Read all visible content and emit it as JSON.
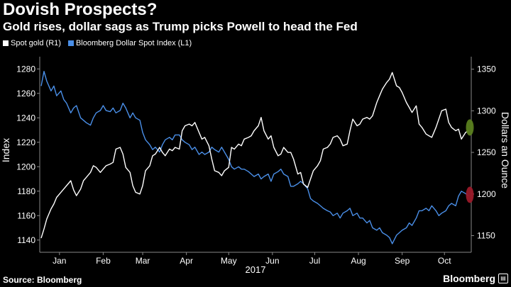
{
  "title": "Dovish Prospects?",
  "subtitle": "Gold rises, dollar sags as Trump picks Powell to head the Fed",
  "legend": [
    {
      "label": "Spot gold (R1)",
      "color": "#ffffff"
    },
    {
      "label": "Bloomberg Dollar Spot Index (L1)",
      "color": "#4a8fe8"
    }
  ],
  "footer": {
    "source": "Source: Bloomberg",
    "brand": "Bloomberg",
    "brand_icon": "bloomberg-logo-icon"
  },
  "chart_data": {
    "type": "line",
    "xlabel": "2017",
    "ylabel_left": "Index",
    "ylabel_right": "Dollars an Ounce",
    "x_tick_labels": [
      "Jan",
      "Feb",
      "Mar",
      "Apr",
      "May",
      "Jun",
      "Jul",
      "Aug",
      "Sep",
      "Oct"
    ],
    "x_tick_dates": [
      "2017-01-15",
      "2017-02-15",
      "2017-03-15",
      "2017-04-15",
      "2017-05-15",
      "2017-06-15",
      "2017-07-15",
      "2017-08-15",
      "2017-09-15",
      "2017-10-15"
    ],
    "xlim": [
      "2017-01-01",
      "2017-11-03"
    ],
    "ylim_left": [
      1130,
      1290
    ],
    "yticks_left": [
      1140,
      1160,
      1180,
      1200,
      1220,
      1240,
      1260,
      1280
    ],
    "ylim_right": [
      1130,
      1365
    ],
    "yticks_right": [
      1150,
      1200,
      1250,
      1300,
      1350
    ],
    "grid": false,
    "legend_position": "top-left",
    "series": [
      {
        "name": "Bloomberg Dollar Spot Index (L1)",
        "axis": "left",
        "color": "#4a8fe8",
        "points": [
          [
            "2017-01-02",
            1266
          ],
          [
            "2017-01-04",
            1278
          ],
          [
            "2017-01-06",
            1270
          ],
          [
            "2017-01-09",
            1262
          ],
          [
            "2017-01-11",
            1266
          ],
          [
            "2017-01-13",
            1258
          ],
          [
            "2017-01-16",
            1262
          ],
          [
            "2017-01-18",
            1255
          ],
          [
            "2017-01-20",
            1252
          ],
          [
            "2017-01-23",
            1244
          ],
          [
            "2017-01-25",
            1248
          ],
          [
            "2017-01-27",
            1250
          ],
          [
            "2017-01-30",
            1240
          ],
          [
            "2017-02-01",
            1238
          ],
          [
            "2017-02-03",
            1236
          ],
          [
            "2017-02-06",
            1234
          ],
          [
            "2017-02-08",
            1240
          ],
          [
            "2017-02-10",
            1244
          ],
          [
            "2017-02-13",
            1246
          ],
          [
            "2017-02-15",
            1250
          ],
          [
            "2017-02-17",
            1246
          ],
          [
            "2017-02-20",
            1245
          ],
          [
            "2017-02-22",
            1248
          ],
          [
            "2017-02-24",
            1244
          ],
          [
            "2017-02-27",
            1246
          ],
          [
            "2017-03-01",
            1252
          ],
          [
            "2017-03-03",
            1248
          ],
          [
            "2017-03-06",
            1240
          ],
          [
            "2017-03-08",
            1244
          ],
          [
            "2017-03-10",
            1240
          ],
          [
            "2017-03-13",
            1238
          ],
          [
            "2017-03-15",
            1228
          ],
          [
            "2017-03-17",
            1222
          ],
          [
            "2017-03-20",
            1218
          ],
          [
            "2017-03-22",
            1214
          ],
          [
            "2017-03-24",
            1216
          ],
          [
            "2017-03-27",
            1212
          ],
          [
            "2017-03-29",
            1218
          ],
          [
            "2017-03-31",
            1222
          ],
          [
            "2017-04-03",
            1224
          ],
          [
            "2017-04-05",
            1222
          ],
          [
            "2017-04-07",
            1226
          ],
          [
            "2017-04-10",
            1226
          ],
          [
            "2017-04-12",
            1222
          ],
          [
            "2017-04-14",
            1220
          ],
          [
            "2017-04-17",
            1218
          ],
          [
            "2017-04-19",
            1214
          ],
          [
            "2017-04-21",
            1216
          ],
          [
            "2017-04-24",
            1210
          ],
          [
            "2017-04-26",
            1212
          ],
          [
            "2017-04-28",
            1210
          ],
          [
            "2017-05-01",
            1212
          ],
          [
            "2017-05-03",
            1216
          ],
          [
            "2017-05-05",
            1214
          ],
          [
            "2017-05-08",
            1212
          ],
          [
            "2017-05-10",
            1216
          ],
          [
            "2017-05-12",
            1212
          ],
          [
            "2017-05-15",
            1206
          ],
          [
            "2017-05-17",
            1200
          ],
          [
            "2017-05-19",
            1198
          ],
          [
            "2017-05-22",
            1200
          ],
          [
            "2017-05-24",
            1198
          ],
          [
            "2017-05-26",
            1198
          ],
          [
            "2017-05-29",
            1196
          ],
          [
            "2017-05-31",
            1194
          ],
          [
            "2017-06-02",
            1192
          ],
          [
            "2017-06-05",
            1194
          ],
          [
            "2017-06-07",
            1190
          ],
          [
            "2017-06-09",
            1192
          ],
          [
            "2017-06-12",
            1194
          ],
          [
            "2017-06-14",
            1188
          ],
          [
            "2017-06-16",
            1194
          ],
          [
            "2017-06-19",
            1196
          ],
          [
            "2017-06-21",
            1198
          ],
          [
            "2017-06-23",
            1194
          ],
          [
            "2017-06-26",
            1192
          ],
          [
            "2017-06-28",
            1184
          ],
          [
            "2017-06-30",
            1184
          ],
          [
            "2017-07-03",
            1186
          ],
          [
            "2017-07-05",
            1188
          ],
          [
            "2017-07-07",
            1186
          ],
          [
            "2017-07-10",
            1182
          ],
          [
            "2017-07-12",
            1174
          ],
          [
            "2017-07-14",
            1172
          ],
          [
            "2017-07-17",
            1170
          ],
          [
            "2017-07-19",
            1168
          ],
          [
            "2017-07-21",
            1166
          ],
          [
            "2017-07-24",
            1164
          ],
          [
            "2017-07-26",
            1163
          ],
          [
            "2017-07-28",
            1160
          ],
          [
            "2017-07-31",
            1162
          ],
          [
            "2017-08-02",
            1158
          ],
          [
            "2017-08-04",
            1162
          ],
          [
            "2017-08-07",
            1164
          ],
          [
            "2017-08-09",
            1166
          ],
          [
            "2017-08-11",
            1160
          ],
          [
            "2017-08-14",
            1162
          ],
          [
            "2017-08-16",
            1158
          ],
          [
            "2017-08-18",
            1158
          ],
          [
            "2017-08-21",
            1154
          ],
          [
            "2017-08-23",
            1156
          ],
          [
            "2017-08-25",
            1150
          ],
          [
            "2017-08-28",
            1148
          ],
          [
            "2017-08-30",
            1150
          ],
          [
            "2017-09-01",
            1146
          ],
          [
            "2017-09-04",
            1144
          ],
          [
            "2017-09-06",
            1142
          ],
          [
            "2017-09-08",
            1137
          ],
          [
            "2017-09-11",
            1144
          ],
          [
            "2017-09-13",
            1146
          ],
          [
            "2017-09-15",
            1148
          ],
          [
            "2017-09-18",
            1150
          ],
          [
            "2017-09-20",
            1154
          ],
          [
            "2017-09-22",
            1152
          ],
          [
            "2017-09-25",
            1158
          ],
          [
            "2017-09-27",
            1164
          ],
          [
            "2017-09-29",
            1164
          ],
          [
            "2017-10-02",
            1166
          ],
          [
            "2017-10-04",
            1164
          ],
          [
            "2017-10-06",
            1168
          ],
          [
            "2017-10-09",
            1164
          ],
          [
            "2017-10-11",
            1160
          ],
          [
            "2017-10-13",
            1162
          ],
          [
            "2017-10-16",
            1164
          ],
          [
            "2017-10-18",
            1168
          ],
          [
            "2017-10-20",
            1170
          ],
          [
            "2017-10-23",
            1168
          ],
          [
            "2017-10-25",
            1176
          ],
          [
            "2017-10-27",
            1180
          ],
          [
            "2017-10-30",
            1178
          ],
          [
            "2017-11-01",
            1176
          ]
        ]
      },
      {
        "name": "Spot gold (R1)",
        "axis": "right",
        "color": "#ffffff",
        "points": [
          [
            "2017-01-02",
            1147
          ],
          [
            "2017-01-04",
            1158
          ],
          [
            "2017-01-06",
            1170
          ],
          [
            "2017-01-09",
            1182
          ],
          [
            "2017-01-11",
            1188
          ],
          [
            "2017-01-13",
            1196
          ],
          [
            "2017-01-16",
            1202
          ],
          [
            "2017-01-18",
            1206
          ],
          [
            "2017-01-20",
            1210
          ],
          [
            "2017-01-23",
            1216
          ],
          [
            "2017-01-25",
            1205
          ],
          [
            "2017-01-27",
            1198
          ],
          [
            "2017-01-30",
            1206
          ],
          [
            "2017-02-01",
            1216
          ],
          [
            "2017-02-03",
            1220
          ],
          [
            "2017-02-06",
            1226
          ],
          [
            "2017-02-08",
            1234
          ],
          [
            "2017-02-10",
            1232
          ],
          [
            "2017-02-13",
            1226
          ],
          [
            "2017-02-15",
            1230
          ],
          [
            "2017-02-17",
            1234
          ],
          [
            "2017-02-20",
            1236
          ],
          [
            "2017-02-22",
            1238
          ],
          [
            "2017-02-24",
            1254
          ],
          [
            "2017-02-27",
            1256
          ],
          [
            "2017-03-01",
            1248
          ],
          [
            "2017-03-03",
            1232
          ],
          [
            "2017-03-06",
            1226
          ],
          [
            "2017-03-08",
            1210
          ],
          [
            "2017-03-10",
            1202
          ],
          [
            "2017-03-13",
            1200
          ],
          [
            "2017-03-15",
            1210
          ],
          [
            "2017-03-17",
            1228
          ],
          [
            "2017-03-20",
            1234
          ],
          [
            "2017-03-22",
            1246
          ],
          [
            "2017-03-24",
            1248
          ],
          [
            "2017-03-27",
            1256
          ],
          [
            "2017-03-29",
            1250
          ],
          [
            "2017-03-31",
            1246
          ],
          [
            "2017-04-03",
            1254
          ],
          [
            "2017-04-05",
            1252
          ],
          [
            "2017-04-07",
            1256
          ],
          [
            "2017-04-10",
            1254
          ],
          [
            "2017-04-12",
            1276
          ],
          [
            "2017-04-14",
            1282
          ],
          [
            "2017-04-17",
            1284
          ],
          [
            "2017-04-19",
            1282
          ],
          [
            "2017-04-21",
            1286
          ],
          [
            "2017-04-24",
            1274
          ],
          [
            "2017-04-26",
            1266
          ],
          [
            "2017-04-28",
            1268
          ],
          [
            "2017-05-01",
            1258
          ],
          [
            "2017-05-03",
            1242
          ],
          [
            "2017-05-05",
            1228
          ],
          [
            "2017-05-08",
            1226
          ],
          [
            "2017-05-10",
            1222
          ],
          [
            "2017-05-12",
            1228
          ],
          [
            "2017-05-15",
            1232
          ],
          [
            "2017-05-17",
            1256
          ],
          [
            "2017-05-19",
            1254
          ],
          [
            "2017-05-22",
            1260
          ],
          [
            "2017-05-24",
            1258
          ],
          [
            "2017-05-26",
            1266
          ],
          [
            "2017-05-29",
            1268
          ],
          [
            "2017-05-31",
            1270
          ],
          [
            "2017-06-02",
            1276
          ],
          [
            "2017-06-05",
            1282
          ],
          [
            "2017-06-07",
            1292
          ],
          [
            "2017-06-09",
            1276
          ],
          [
            "2017-06-12",
            1266
          ],
          [
            "2017-06-14",
            1270
          ],
          [
            "2017-06-16",
            1256
          ],
          [
            "2017-06-19",
            1246
          ],
          [
            "2017-06-21",
            1248
          ],
          [
            "2017-06-23",
            1256
          ],
          [
            "2017-06-26",
            1250
          ],
          [
            "2017-06-28",
            1250
          ],
          [
            "2017-06-30",
            1242
          ],
          [
            "2017-07-03",
            1224
          ],
          [
            "2017-07-05",
            1226
          ],
          [
            "2017-07-07",
            1212
          ],
          [
            "2017-07-10",
            1208
          ],
          [
            "2017-07-12",
            1218
          ],
          [
            "2017-07-14",
            1228
          ],
          [
            "2017-07-17",
            1234
          ],
          [
            "2017-07-19",
            1240
          ],
          [
            "2017-07-21",
            1254
          ],
          [
            "2017-07-24",
            1256
          ],
          [
            "2017-07-26",
            1260
          ],
          [
            "2017-07-28",
            1268
          ],
          [
            "2017-07-31",
            1270
          ],
          [
            "2017-08-02",
            1266
          ],
          [
            "2017-08-04",
            1258
          ],
          [
            "2017-08-07",
            1260
          ],
          [
            "2017-08-09",
            1276
          ],
          [
            "2017-08-11",
            1290
          ],
          [
            "2017-08-14",
            1282
          ],
          [
            "2017-08-16",
            1284
          ],
          [
            "2017-08-18",
            1290
          ],
          [
            "2017-08-21",
            1292
          ],
          [
            "2017-08-23",
            1290
          ],
          [
            "2017-08-25",
            1294
          ],
          [
            "2017-08-28",
            1310
          ],
          [
            "2017-08-30",
            1318
          ],
          [
            "2017-09-01",
            1326
          ],
          [
            "2017-09-04",
            1334
          ],
          [
            "2017-09-06",
            1338
          ],
          [
            "2017-09-08",
            1346
          ],
          [
            "2017-09-11",
            1330
          ],
          [
            "2017-09-13",
            1328
          ],
          [
            "2017-09-15",
            1322
          ],
          [
            "2017-09-18",
            1310
          ],
          [
            "2017-09-20",
            1304
          ],
          [
            "2017-09-22",
            1298
          ],
          [
            "2017-09-25",
            1306
          ],
          [
            "2017-09-27",
            1284
          ],
          [
            "2017-09-29",
            1280
          ],
          [
            "2017-10-02",
            1272
          ],
          [
            "2017-10-04",
            1270
          ],
          [
            "2017-10-06",
            1268
          ],
          [
            "2017-10-09",
            1280
          ],
          [
            "2017-10-11",
            1290
          ],
          [
            "2017-10-13",
            1300
          ],
          [
            "2017-10-16",
            1302
          ],
          [
            "2017-10-18",
            1286
          ],
          [
            "2017-10-20",
            1280
          ],
          [
            "2017-10-23",
            1276
          ],
          [
            "2017-10-25",
            1278
          ],
          [
            "2017-10-27",
            1266
          ],
          [
            "2017-10-30",
            1274
          ],
          [
            "2017-11-01",
            1276
          ]
        ]
      }
    ],
    "annotations": [
      {
        "type": "endpoint-marker",
        "series": "Spot gold (R1)",
        "date": "2017-11-02",
        "value": 1280,
        "color": "#5a7f1e"
      },
      {
        "type": "endpoint-marker",
        "series": "Bloomberg Dollar Spot Index (L1)",
        "date": "2017-11-02",
        "value": 1177,
        "color": "#9b1a2a"
      }
    ]
  }
}
